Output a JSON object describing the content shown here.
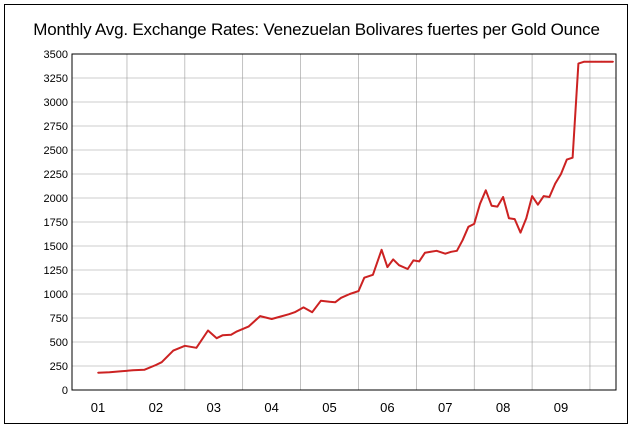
{
  "chart_data": {
    "type": "line",
    "title": "Monthly Avg. Exchange Rates: Venezuelan Bolivares fuertes per Gold Ounce",
    "xlabel": "",
    "ylabel": "",
    "ylim": [
      0,
      3500
    ],
    "y_ticks": [
      0,
      250,
      500,
      750,
      1000,
      1250,
      1500,
      1750,
      2000,
      2250,
      2500,
      2750,
      3000,
      3250,
      3500
    ],
    "categories": [
      "01",
      "02",
      "03",
      "04",
      "05",
      "06",
      "07",
      "08",
      "09"
    ],
    "grid": true,
    "series": [
      {
        "name": "Bolivares fuertes per Gold Ounce",
        "color": "#cc2222",
        "x": [
          2001.0,
          2001.2,
          2001.4,
          2001.6,
          2001.8,
          2002.0,
          2002.1,
          2002.3,
          2002.5,
          2002.7,
          2002.9,
          2003.05,
          2003.15,
          2003.3,
          2003.4,
          2003.6,
          2003.8,
          2004.0,
          2004.15,
          2004.3,
          2004.4,
          2004.55,
          2004.7,
          2004.85,
          2005.0,
          2005.1,
          2005.2,
          2005.35,
          2005.5,
          2005.6,
          2005.75,
          2005.9,
          2006.0,
          2006.1,
          2006.2,
          2006.35,
          2006.45,
          2006.55,
          2006.65,
          2006.75,
          2006.85,
          2007.0,
          2007.1,
          2007.2,
          2007.3,
          2007.4,
          2007.5,
          2007.6,
          2007.7,
          2007.8,
          2007.9,
          2008.0,
          2008.1,
          2008.2,
          2008.3,
          2008.4,
          2008.5,
          2008.6,
          2008.7,
          2008.8,
          2008.9,
          2009.0,
          2009.1,
          2009.2,
          2009.3,
          2009.4,
          2009.5,
          2009.6,
          2009.7,
          2009.75,
          2009.85,
          2009.9
        ],
        "values": [
          180,
          185,
          195,
          205,
          210,
          260,
          290,
          410,
          460,
          440,
          620,
          540,
          570,
          575,
          610,
          660,
          770,
          740,
          765,
          790,
          810,
          860,
          810,
          930,
          920,
          915,
          960,
          1000,
          1030,
          1170,
          1200,
          1460,
          1280,
          1360,
          1300,
          1260,
          1350,
          1340,
          1430,
          1440,
          1450,
          1420,
          1440,
          1450,
          1560,
          1700,
          1730,
          1940,
          2080,
          1920,
          1910,
          2010,
          1790,
          1780,
          1640,
          1790,
          2020,
          1930,
          2020,
          2010,
          2150,
          2250,
          2400,
          2420,
          3400,
          3420,
          3420,
          3420,
          3420,
          3420,
          3420,
          3420
        ]
      }
    ]
  }
}
